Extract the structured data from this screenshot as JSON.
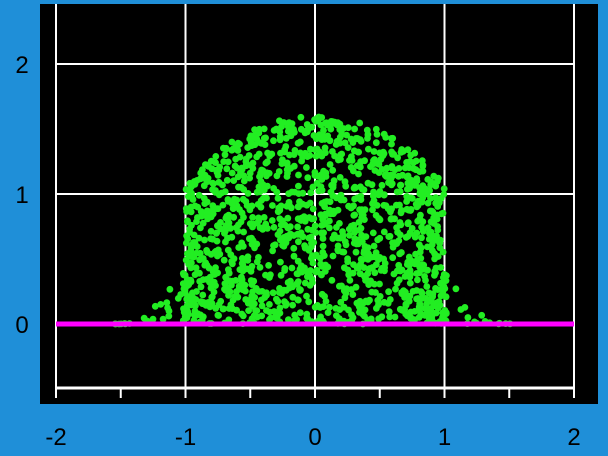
{
  "colors": {
    "frame": "#1f8fd8",
    "plot_background": "#000000",
    "grid": "#ffffff",
    "points": "#22ee22",
    "baseline": "#ff00ff",
    "tick_text": "#000000"
  },
  "chart_data": {
    "type": "scatter",
    "title": "",
    "xlabel": "",
    "ylabel": "",
    "xlim": [
      -2,
      2
    ],
    "ylim": [
      -0.5,
      2.35
    ],
    "grid": true,
    "x_ticks": [
      "-2",
      "-1",
      "0",
      "1",
      "2"
    ],
    "y_ticks": [
      "0",
      "1",
      "2"
    ],
    "series": [
      {
        "kind": "points",
        "shape": "semicircle-like cloud of green dots filling area under an envelope peaking near y=1.6 at x=0, tailing to y≈0 at x≈±1.5",
        "point_count": 1400,
        "envelope_peak": 1.6,
        "envelope_halfwidth": 1.0
      },
      {
        "kind": "line",
        "points": [
          [
            -2,
            0
          ],
          [
            2,
            0
          ]
        ]
      }
    ]
  }
}
